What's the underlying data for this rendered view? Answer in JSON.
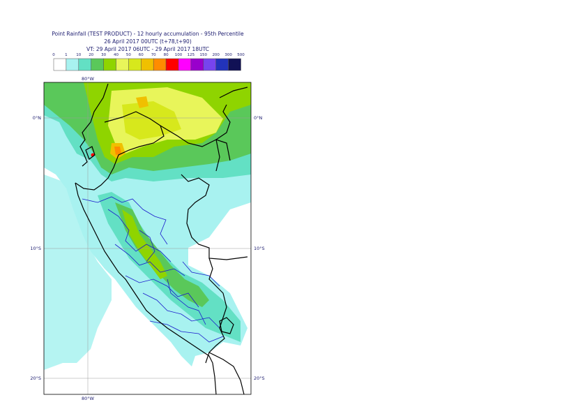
{
  "title": {
    "line1": "Point Rainfall (TEST PRODUCT) - 12 hourly accumulation - 95th Percentile",
    "line2": "26 April 2017 00UTC (t+78,t+90)",
    "line3": "VT: 29 April 2017 06UTC - 29 April 2017 18UTC"
  },
  "legend": {
    "levels": [
      "0",
      "1",
      "10",
      "20",
      "30",
      "40",
      "50",
      "60",
      "70",
      "80",
      "100",
      "125",
      "150",
      "200",
      "300",
      "500"
    ],
    "colors": [
      "#ffffff",
      "#a8f2f0",
      "#63e0c4",
      "#5ac85a",
      "#8fd400",
      "#e8f55a",
      "#d7e81c",
      "#f0c000",
      "#ff8c00",
      "#ff0000",
      "#ff00ff",
      "#9900cc",
      "#7744ee",
      "#2233bb",
      "#111155"
    ]
  },
  "axes": {
    "lon_top": "80°W",
    "lon_bottom": "80°W",
    "lat_0_left": "0°N",
    "lat_0_right": "0°N",
    "lat_10_left": "10°S",
    "lat_10_right": "10°S",
    "lat_20_left": "20°S",
    "lat_20_right": "20°S"
  },
  "colors": {
    "ocean_land_light": "#a8f2f0",
    "border_country": "#000000",
    "border_region": "#1a1acc",
    "grid": "#999999"
  }
}
